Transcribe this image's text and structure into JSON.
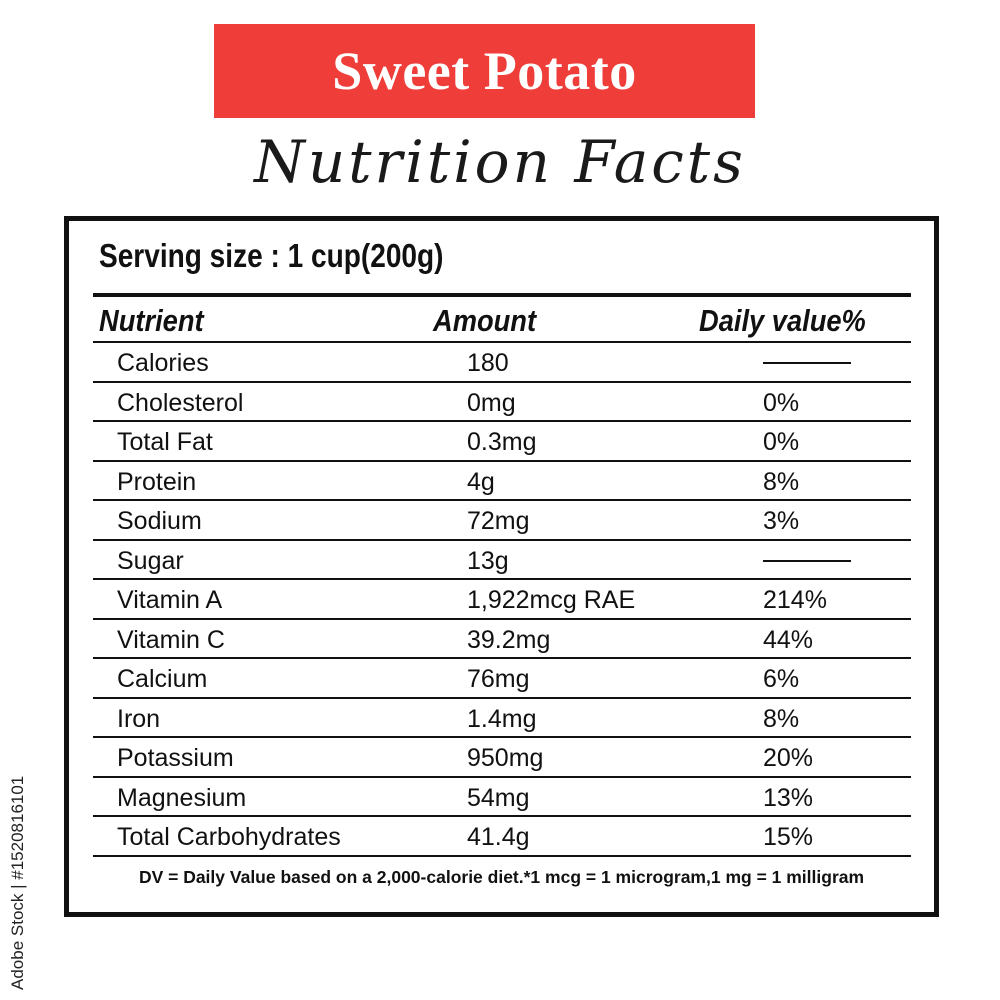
{
  "title": "Sweet Potato",
  "subtitle": "Nutrition Facts",
  "serving": "Serving size : 1 cup(200g)",
  "headers": {
    "nutrient": "Nutrient",
    "amount": "Amount",
    "daily": "Daily value%"
  },
  "rows": [
    {
      "name": "Calories",
      "amount": "180",
      "dv": ""
    },
    {
      "name": "Cholesterol",
      "amount": "0mg",
      "dv": "0%"
    },
    {
      "name": "Total Fat",
      "amount": "0.3mg",
      "dv": "0%"
    },
    {
      "name": "Protein",
      "amount": "4g",
      "dv": "8%"
    },
    {
      "name": "Sodium",
      "amount": "72mg",
      "dv": "3%"
    },
    {
      "name": "Sugar",
      "amount": "13g",
      "dv": ""
    },
    {
      "name": "Vitamin A",
      "amount": "1,922mcg RAE",
      "dv": "214%"
    },
    {
      "name": "Vitamin C",
      "amount": "39.2mg",
      "dv": "44%"
    },
    {
      "name": "Calcium",
      "amount": "76mg",
      "dv": "6%"
    },
    {
      "name": "Iron",
      "amount": "1.4mg",
      "dv": "8%"
    },
    {
      "name": "Potassium",
      "amount": "950mg",
      "dv": "20%"
    },
    {
      "name": "Magnesium",
      "amount": "54mg",
      "dv": "13%"
    },
    {
      "name": "Total Carbohydrates",
      "amount": "41.4g",
      "dv": "15%"
    }
  ],
  "footnote": "DV = Daily Value based on a 2,000-calorie diet.*1 mcg = 1 microgram,1 mg = 1 milligram",
  "side_mark": "Adobe Stock | #1520816101",
  "colors": {
    "banner": "#ef3e3a",
    "text": "#111111"
  }
}
